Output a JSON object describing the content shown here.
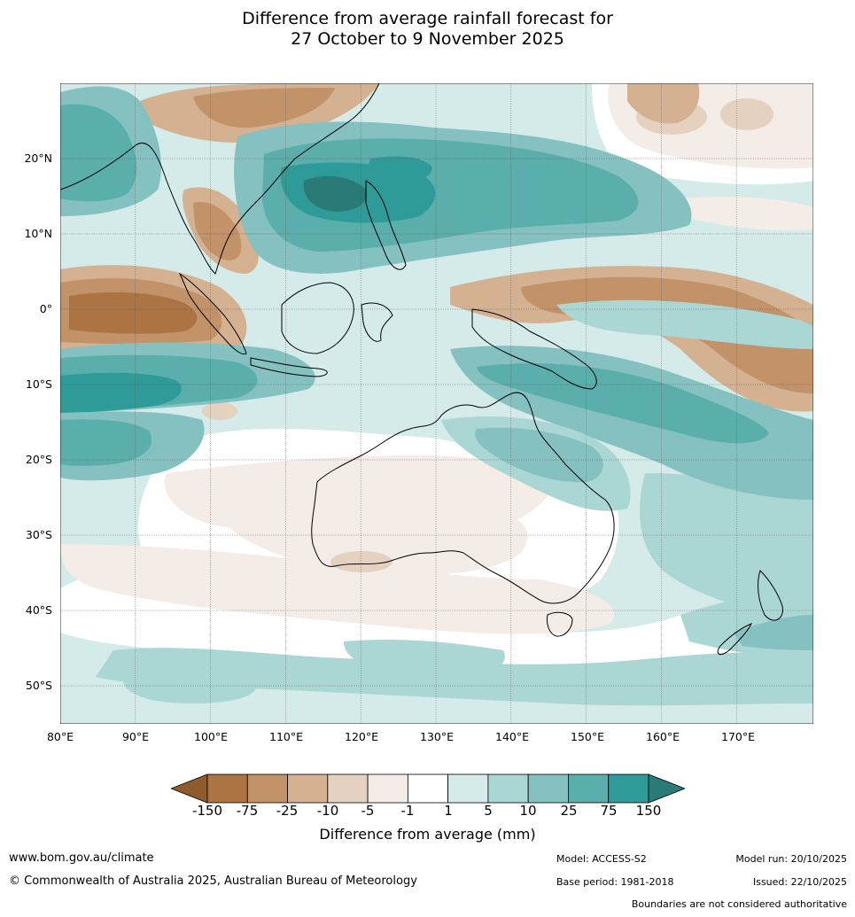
{
  "title": {
    "line1": "Difference from average rainfall forecast for",
    "line2": "27 October to 9 November 2025"
  },
  "map": {
    "lat_labels": [
      "20°N",
      "10°N",
      "0°",
      "10°S",
      "20°S",
      "30°S",
      "40°S",
      "50°S"
    ],
    "lon_labels": [
      "80°E",
      "90°E",
      "100°E",
      "110°E",
      "120°E",
      "130°E",
      "140°E",
      "150°E",
      "160°E",
      "170°E"
    ],
    "lon_range": [
      80,
      180
    ],
    "lat_range": [
      -55,
      30
    ],
    "grid": true
  },
  "legend": {
    "title": "Difference from average (mm)",
    "tick_labels": [
      "-150",
      "-75",
      "-25",
      "-10",
      "-5",
      "-1",
      "1",
      "5",
      "10",
      "25",
      "75",
      "150"
    ],
    "colors": [
      "#8f5a2c",
      "#ac7442",
      "#c29268",
      "#d4b190",
      "#e5d1bf",
      "#f4ece6",
      "#ffffff",
      "#d4ebea",
      "#aad6d4",
      "#84c1c0",
      "#5aaeac",
      "#2f9b98",
      "#2a7b78"
    ]
  },
  "footer": {
    "website": "www.bom.gov.au/climate",
    "copyright": "© Commonwealth of Australia 2025, Australian Bureau of Meteorology",
    "model": "Model: ACCESS-S2",
    "base_period": "Base period: 1981-2018",
    "model_run": "Model run: 20/10/2025",
    "issued": "Issued: 22/10/2025",
    "boundaries": "Boundaries are not considered authoritative"
  }
}
